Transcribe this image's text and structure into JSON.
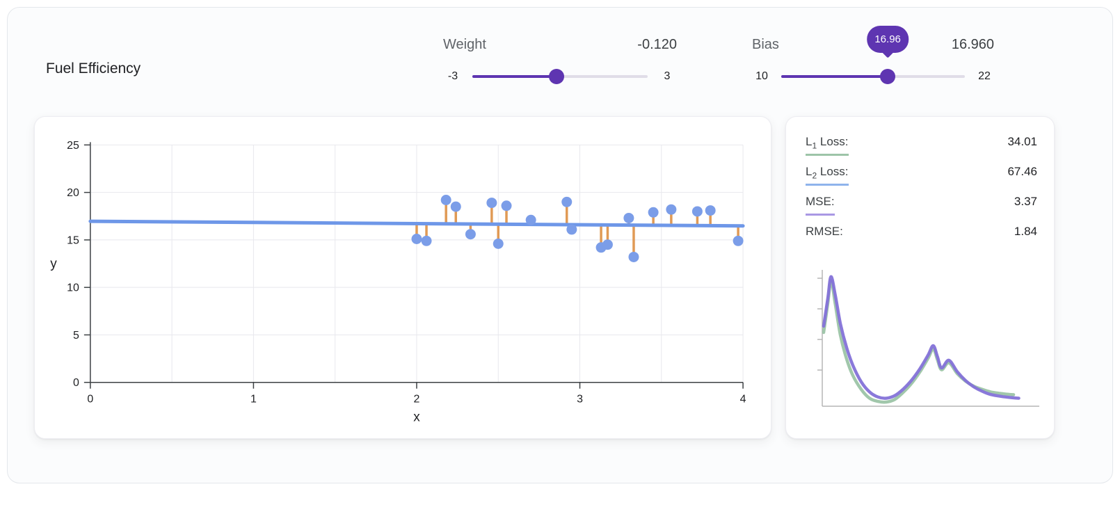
{
  "app": {
    "title": "Fuel Efficiency"
  },
  "controls": {
    "weight": {
      "label": "Weight",
      "value": -0.12,
      "value_display": "-0.120",
      "min": -3,
      "max": 3,
      "min_label": "-3",
      "max_label": "3"
    },
    "bias": {
      "label": "Bias",
      "value": 16.96,
      "value_display": "16.960",
      "min": 10,
      "max": 22,
      "min_label": "10",
      "max_label": "22",
      "tooltip": "16.96"
    }
  },
  "metrics": [
    {
      "prefix": "L",
      "sub": "1",
      "suffix": " Loss:",
      "value": "34.01",
      "underline": "#9dc4a8"
    },
    {
      "prefix": "L",
      "sub": "2",
      "suffix": " Loss:",
      "value": "67.46",
      "underline": "#8fb3ec"
    },
    {
      "prefix": "MSE:",
      "sub": "",
      "suffix": "",
      "value": "3.37",
      "underline": "#a998e4"
    },
    {
      "prefix": "RMSE:",
      "sub": "",
      "suffix": "",
      "value": "1.84",
      "underline": ""
    }
  ],
  "chart_data": [
    {
      "type": "scatter",
      "title": "model fit plot",
      "xlabel": "x",
      "ylabel": "y",
      "xlim": [
        0,
        4
      ],
      "ylim": [
        0,
        25
      ],
      "xticks": [
        0,
        1,
        2,
        3,
        4
      ],
      "yticks": [
        0,
        5,
        10,
        15,
        20,
        25
      ],
      "grid": true,
      "grid_minor_x_step": 0.5,
      "points": [
        [
          2.0,
          15.1
        ],
        [
          2.06,
          14.9
        ],
        [
          2.18,
          19.2
        ],
        [
          2.24,
          18.5
        ],
        [
          2.33,
          15.6
        ],
        [
          2.46,
          18.9
        ],
        [
          2.5,
          14.6
        ],
        [
          2.55,
          18.6
        ],
        [
          2.7,
          17.1
        ],
        [
          2.92,
          19.0
        ],
        [
          2.95,
          16.1
        ],
        [
          3.13,
          14.2
        ],
        [
          3.17,
          14.5
        ],
        [
          3.3,
          17.3
        ],
        [
          3.33,
          13.2
        ],
        [
          3.45,
          17.9
        ],
        [
          3.56,
          18.2
        ],
        [
          3.72,
          18.0
        ],
        [
          3.8,
          18.1
        ],
        [
          3.97,
          14.9
        ]
      ],
      "model_line": {
        "weight": -0.12,
        "bias": 16.96
      },
      "colors": {
        "point": "#7b9de8",
        "line": "#6e97e8",
        "residual": "#e09a55",
        "grid": "#e8e8ed",
        "axis": "#3c4043"
      }
    },
    {
      "type": "line",
      "title": "loss landscape",
      "xlim": [
        0,
        1
      ],
      "ylim": [
        0,
        1
      ],
      "grid": false,
      "legend_position": "none",
      "series": [
        {
          "name": "L1 loss",
          "color": "#9cc4a6",
          "points": [
            [
              0,
              0.55
            ],
            [
              0.02,
              0.78
            ],
            [
              0.035,
              0.96
            ],
            [
              0.055,
              0.78
            ],
            [
              0.08,
              0.53
            ],
            [
              0.11,
              0.34
            ],
            [
              0.14,
              0.21
            ],
            [
              0.18,
              0.1
            ],
            [
              0.22,
              0.03
            ],
            [
              0.26,
              0.005
            ],
            [
              0.3,
              0.0
            ],
            [
              0.34,
              0.02
            ],
            [
              0.38,
              0.075
            ],
            [
              0.42,
              0.145
            ],
            [
              0.46,
              0.235
            ],
            [
              0.5,
              0.345
            ],
            [
              0.525,
              0.42
            ],
            [
              0.545,
              0.335
            ],
            [
              0.565,
              0.255
            ],
            [
              0.6,
              0.31
            ],
            [
              0.64,
              0.225
            ],
            [
              0.68,
              0.165
            ],
            [
              0.72,
              0.125
            ],
            [
              0.76,
              0.1
            ],
            [
              0.8,
              0.08
            ],
            [
              0.84,
              0.07
            ],
            [
              0.88,
              0.062
            ],
            [
              0.91,
              0.058
            ]
          ]
        },
        {
          "name": "MSE loss",
          "color": "#8472d8",
          "points": [
            [
              0,
              0.6
            ],
            [
              0.02,
              0.82
            ],
            [
              0.035,
              0.99
            ],
            [
              0.055,
              0.85
            ],
            [
              0.08,
              0.62
            ],
            [
              0.11,
              0.43
            ],
            [
              0.14,
              0.29
            ],
            [
              0.18,
              0.16
            ],
            [
              0.22,
              0.08
            ],
            [
              0.26,
              0.04
            ],
            [
              0.3,
              0.03
            ],
            [
              0.34,
              0.05
            ],
            [
              0.38,
              0.1
            ],
            [
              0.42,
              0.17
            ],
            [
              0.46,
              0.26
            ],
            [
              0.5,
              0.37
            ],
            [
              0.525,
              0.445
            ],
            [
              0.545,
              0.36
            ],
            [
              0.565,
              0.27
            ],
            [
              0.6,
              0.33
            ],
            [
              0.64,
              0.24
            ],
            [
              0.68,
              0.17
            ],
            [
              0.72,
              0.12
            ],
            [
              0.76,
              0.085
            ],
            [
              0.8,
              0.06
            ],
            [
              0.85,
              0.045
            ],
            [
              0.9,
              0.035
            ],
            [
              0.935,
              0.03
            ]
          ]
        }
      ],
      "axis_color": "#b5b5b5"
    }
  ]
}
